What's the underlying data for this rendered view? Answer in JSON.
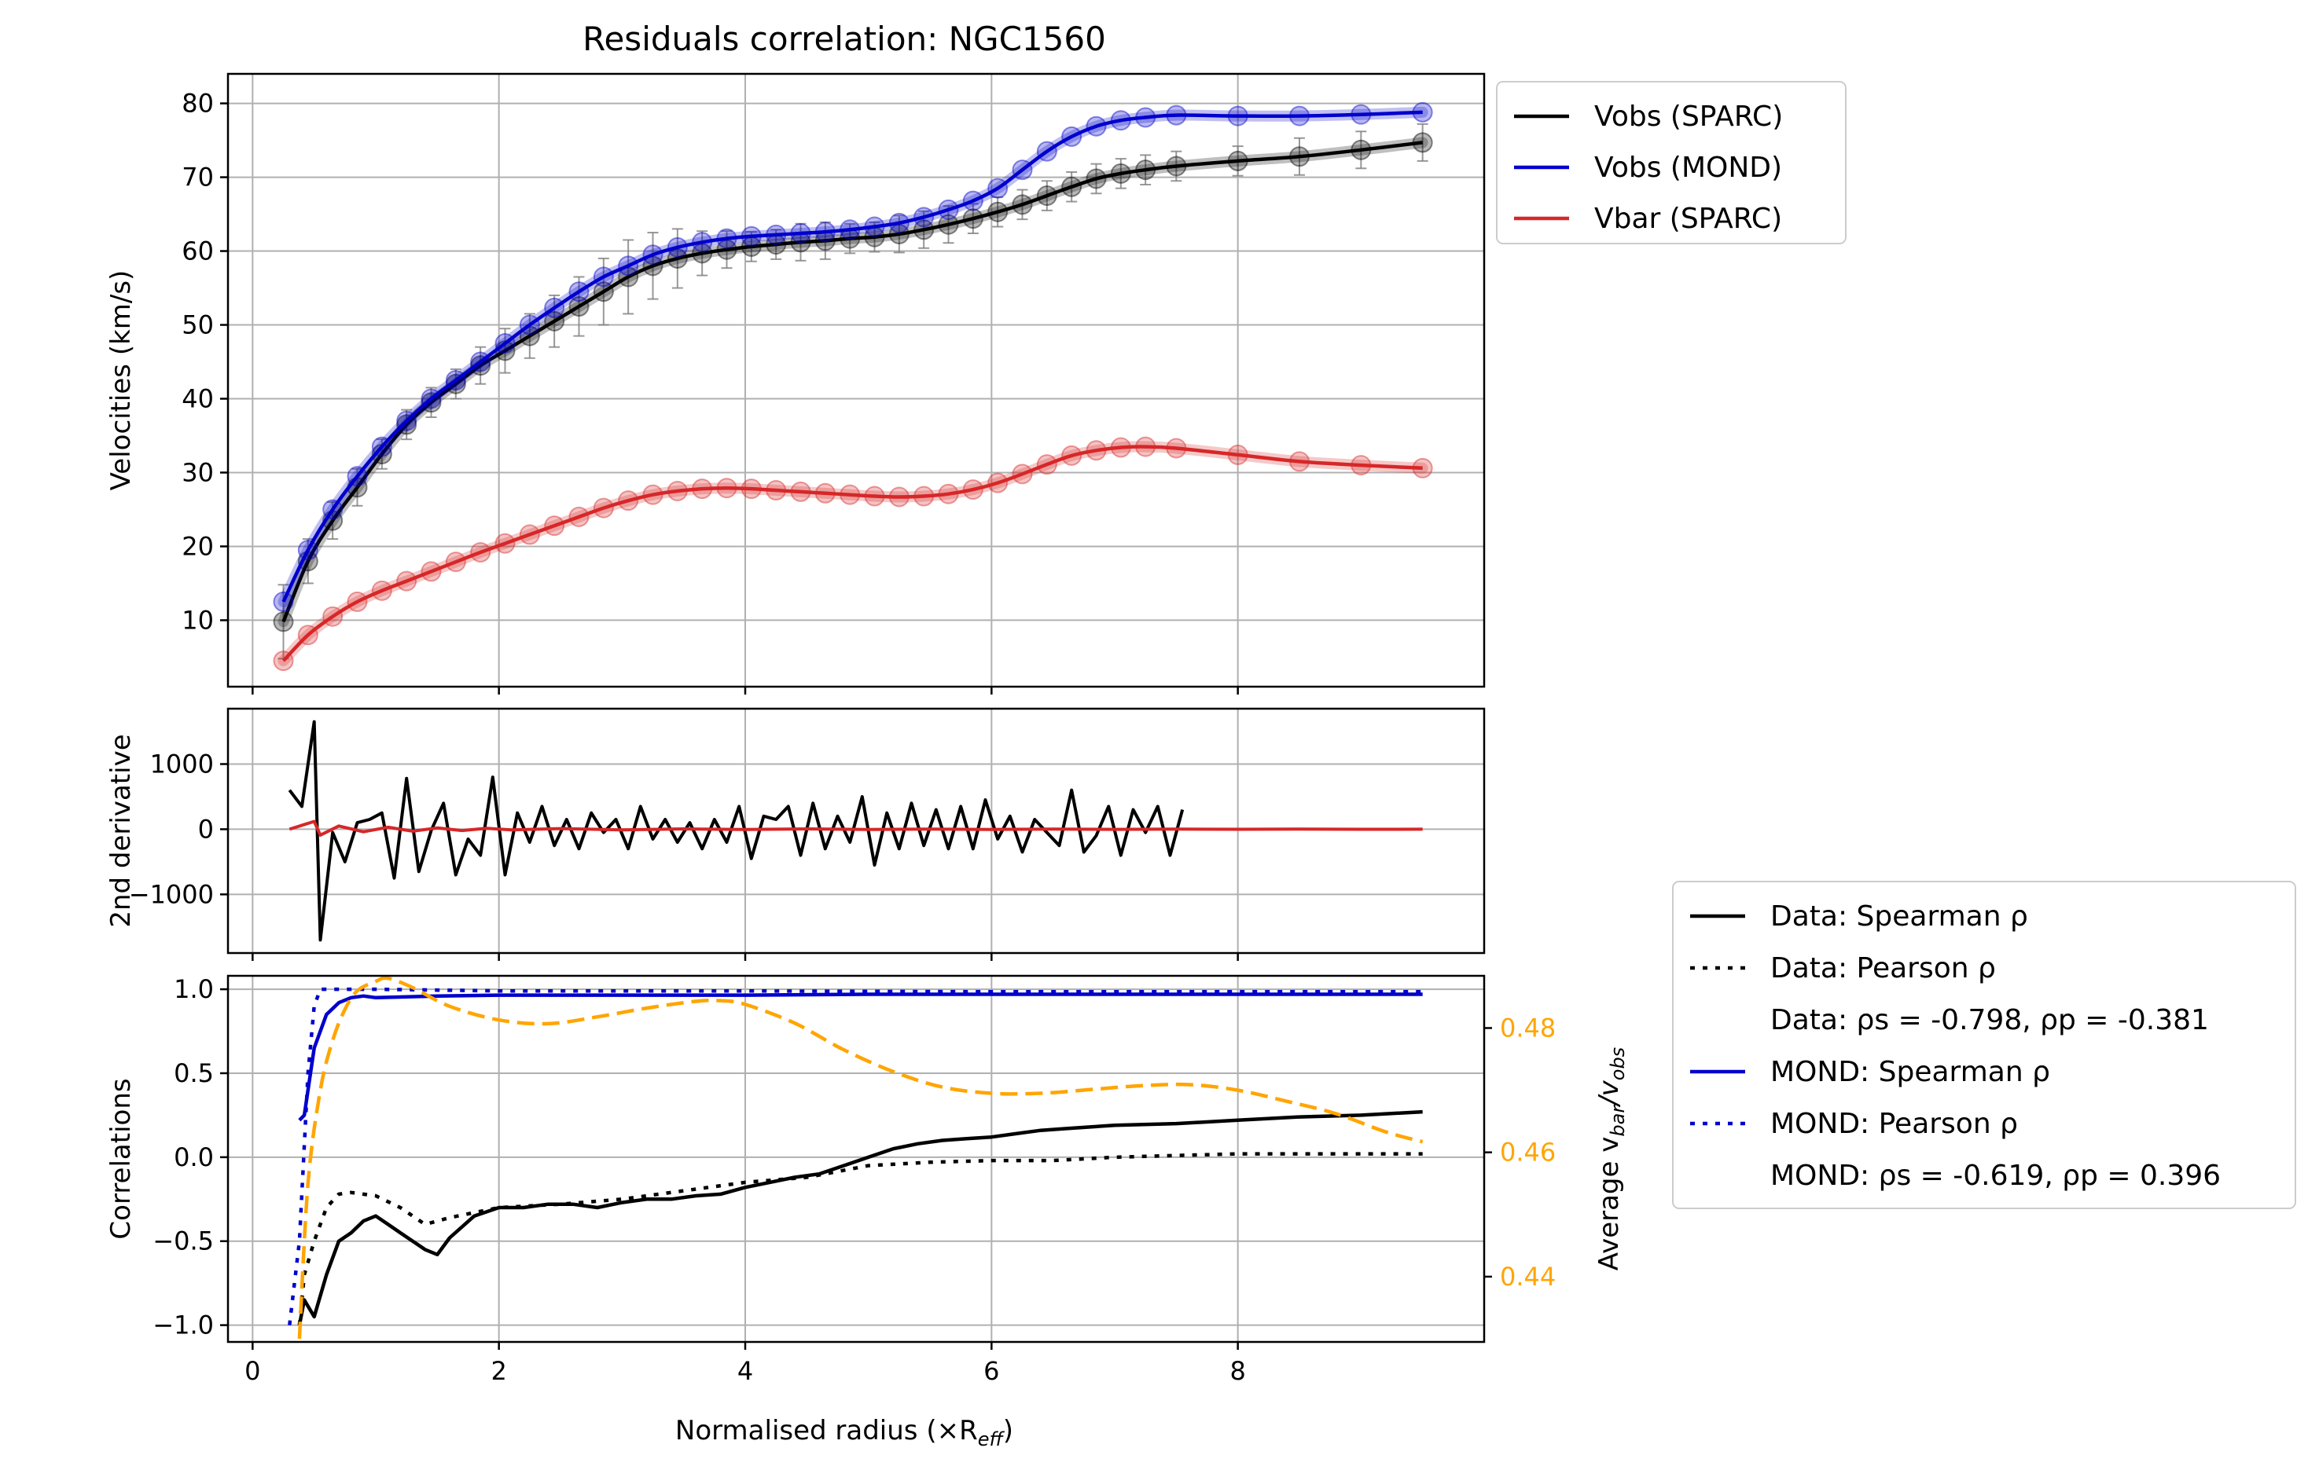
{
  "chart_data": {
    "title": "Residuals correlation: NGC1560",
    "xlabel": "Normalised radius (×R",
    "xlabel_sub": "eff",
    "xlabel_end": ")",
    "xlim": [
      -0.2,
      10.0
    ],
    "xticks": [
      0,
      2,
      4,
      6,
      8
    ],
    "colors": {
      "data": "#000000",
      "mond": "#0000cc",
      "vbar": "#d62728",
      "avg": "#ffa500"
    },
    "panels": [
      {
        "id": "velocities",
        "type": "line+scatter",
        "ylabel": "Velocities (km/s)",
        "ylim": [
          1,
          84
        ],
        "yticks": [
          10,
          20,
          30,
          40,
          50,
          60,
          70,
          80
        ],
        "legend": {
          "placement": "outside-top-right",
          "entries": [
            "Vobs (SPARC)",
            "Vobs (MOND)",
            "Vbar (SPARC)"
          ]
        },
        "series": [
          {
            "name": "Vobs (SPARC)",
            "x": [
              0.25,
              0.45,
              0.65,
              0.85,
              1.05,
              1.25,
              1.45,
              1.65,
              1.85,
              2.05,
              2.25,
              2.45,
              2.65,
              2.85,
              3.05,
              3.25,
              3.45,
              3.65,
              3.85,
              4.05,
              4.25,
              4.45,
              4.65,
              4.85,
              5.05,
              5.25,
              5.45,
              5.65,
              5.85,
              6.05,
              6.25,
              6.45,
              6.65,
              6.85,
              7.05,
              7.25,
              7.5,
              8.0,
              8.5,
              9.0,
              9.5
            ],
            "y": [
              9.8,
              18.0,
              23.5,
              28.0,
              32.5,
              36.5,
              39.5,
              42.0,
              44.5,
              46.5,
              48.5,
              50.5,
              52.5,
              54.5,
              56.5,
              58.0,
              59.0,
              59.7,
              60.2,
              60.6,
              60.9,
              61.2,
              61.4,
              61.7,
              61.9,
              62.3,
              62.9,
              63.6,
              64.4,
              65.3,
              66.3,
              67.5,
              68.7,
              69.8,
              70.5,
              71.0,
              71.5,
              72.2,
              72.8,
              73.7,
              74.7
            ]
          },
          {
            "name": "Vobs (MOND)",
            "x": [
              0.25,
              0.45,
              0.65,
              0.85,
              1.05,
              1.25,
              1.45,
              1.65,
              1.85,
              2.05,
              2.25,
              2.45,
              2.65,
              2.85,
              3.05,
              3.25,
              3.45,
              3.65,
              3.85,
              4.05,
              4.25,
              4.45,
              4.65,
              4.85,
              5.05,
              5.25,
              5.45,
              5.65,
              5.85,
              6.05,
              6.25,
              6.45,
              6.65,
              6.85,
              7.05,
              7.25,
              7.5,
              8.0,
              8.5,
              9.0,
              9.5
            ],
            "y": [
              12.5,
              19.5,
              25.0,
              29.5,
              33.5,
              37.0,
              40.0,
              42.5,
              45.0,
              47.5,
              50.0,
              52.3,
              54.5,
              56.5,
              58.0,
              59.5,
              60.5,
              61.2,
              61.7,
              62.0,
              62.2,
              62.4,
              62.6,
              62.9,
              63.3,
              63.8,
              64.6,
              65.6,
              66.8,
              68.5,
              71.0,
              73.5,
              75.5,
              76.9,
              77.7,
              78.1,
              78.4,
              78.3,
              78.3,
              78.5,
              78.8
            ]
          },
          {
            "name": "Vbar (SPARC)",
            "x": [
              0.25,
              0.45,
              0.65,
              0.85,
              1.05,
              1.25,
              1.45,
              1.65,
              1.85,
              2.05,
              2.25,
              2.45,
              2.65,
              2.85,
              3.05,
              3.25,
              3.45,
              3.65,
              3.85,
              4.05,
              4.25,
              4.45,
              4.65,
              4.85,
              5.05,
              5.25,
              5.45,
              5.65,
              5.85,
              6.05,
              6.25,
              6.45,
              6.65,
              6.85,
              7.05,
              7.25,
              7.5,
              8.0,
              8.5,
              9.0,
              9.5
            ],
            "y": [
              4.5,
              8.0,
              10.5,
              12.5,
              14.0,
              15.3,
              16.6,
              17.9,
              19.2,
              20.4,
              21.6,
              22.8,
              24.0,
              25.2,
              26.2,
              27.0,
              27.5,
              27.8,
              27.9,
              27.8,
              27.6,
              27.4,
              27.2,
              27.0,
              26.8,
              26.7,
              26.8,
              27.1,
              27.7,
              28.6,
              29.8,
              31.1,
              32.3,
              33.0,
              33.4,
              33.5,
              33.3,
              32.4,
              31.5,
              31.0,
              30.6
            ]
          }
        ]
      },
      {
        "id": "second-derivative",
        "type": "line",
        "ylabel": "2nd derivative",
        "ylim": [
          -1900,
          1850
        ],
        "yticks": [
          1000,
          0,
          -1000
        ],
        "ytick_labels": [
          "1000",
          "0",
          "−1000"
        ],
        "series": [
          {
            "name": "",
            "x": [
              0.3,
              0.4,
              0.5,
              0.55,
              0.65,
              0.75,
              0.85,
              0.95,
              1.05,
              1.15,
              1.25,
              1.35,
              1.45,
              1.55,
              1.65,
              1.75,
              1.85,
              1.95,
              2.05,
              2.15,
              2.25,
              2.35,
              2.45,
              2.55,
              2.65,
              2.75,
              2.85,
              2.95,
              3.05,
              3.15,
              3.25,
              3.35,
              3.45,
              3.55,
              3.65,
              3.75,
              3.85,
              3.95,
              4.05,
              4.15,
              4.25,
              4.35,
              4.45,
              4.55,
              4.65,
              4.75,
              4.85,
              4.95,
              5.05,
              5.15,
              5.25,
              5.35,
              5.45,
              5.55,
              5.65,
              5.75,
              5.85,
              5.95,
              6.05,
              6.15,
              6.25,
              6.35,
              6.45,
              6.55,
              6.65,
              6.75,
              6.85,
              6.95,
              7.05,
              7.15,
              7.25,
              7.35,
              7.45,
              7.55
            ],
            "y": [
              600,
              350,
              1650,
              -1700,
              -50,
              -500,
              100,
              150,
              250,
              -750,
              780,
              -650,
              -20,
              400,
              -700,
              -150,
              -400,
              800,
              -700,
              250,
              -200,
              350,
              -250,
              150,
              -300,
              250,
              -50,
              150,
              -300,
              350,
              -150,
              150,
              -200,
              100,
              -300,
              150,
              -200,
              350,
              -450,
              200,
              150,
              350,
              -400,
              400,
              -300,
              200,
              -200,
              500,
              -550,
              250,
              -300,
              400,
              -250,
              300,
              -300,
              350,
              -300,
              450,
              -150,
              200,
              -350,
              150,
              -50,
              -250,
              600,
              -350,
              -100,
              350,
              -400,
              300,
              -50,
              350,
              -400,
              300
            ]
          },
          {
            "name": "",
            "x": [
              0.3,
              0.5,
              0.55,
              0.7,
              0.9,
              1.1,
              1.3,
              1.5,
              1.7,
              1.9,
              2.1,
              2.5,
              3.0,
              3.5,
              4.0,
              4.5,
              5.0,
              5.5,
              6.0,
              6.5,
              7.0,
              7.5,
              8.0,
              8.5,
              9.0,
              9.5
            ],
            "y": [
              0,
              120,
              -90,
              50,
              -40,
              30,
              -30,
              20,
              -20,
              15,
              -10,
              10,
              -10,
              5,
              -5,
              5,
              -5,
              3,
              -3,
              2,
              -2,
              2,
              -1,
              1,
              -1,
              0
            ]
          }
        ]
      },
      {
        "id": "correlations",
        "type": "line",
        "ylabel": "Correlations",
        "ylim": [
          -1.1,
          1.08
        ],
        "yticks": [
          1.0,
          0.5,
          0.0,
          -0.5,
          -1.0
        ],
        "ytick_labels": [
          "1.0",
          "0.5",
          "0.0",
          "−0.5",
          "−1.0"
        ],
        "y2label": "Average v",
        "y2label_sub1": "bar",
        "y2label_mid": "/v",
        "y2label_sub2": "obs",
        "y2lim": [
          0.4295,
          0.4884
        ],
        "y2ticks": [
          0.48,
          0.46,
          0.44
        ],
        "legend": {
          "placement": "outside-lower-right",
          "entries": [
            "Data: Spearman ρ",
            "Data: Pearson ρ",
            "Data: ρs = -0.798, ρp = -0.381",
            "MOND: Spearman ρ",
            "MOND: Pearson ρ",
            "MOND: ρs = -0.619, ρp = 0.396"
          ]
        },
        "series": [
          {
            "name": "Data: Spearman ρ",
            "x": [
              0.38,
              0.42,
              0.5,
              0.6,
              0.7,
              0.8,
              0.9,
              1.0,
              1.1,
              1.2,
              1.3,
              1.4,
              1.5,
              1.6,
              1.8,
              2.0,
              2.2,
              2.4,
              2.6,
              2.8,
              3.0,
              3.2,
              3.4,
              3.6,
              3.8,
              4.0,
              4.2,
              4.4,
              4.6,
              4.8,
              5.0,
              5.2,
              5.4,
              5.6,
              5.8,
              6.0,
              6.2,
              6.4,
              6.6,
              6.8,
              7.0,
              7.5,
              8.0,
              8.5,
              9.0,
              9.5
            ],
            "y": [
              -1.0,
              -0.85,
              -0.95,
              -0.7,
              -0.5,
              -0.45,
              -0.38,
              -0.35,
              -0.4,
              -0.45,
              -0.5,
              -0.55,
              -0.58,
              -0.48,
              -0.35,
              -0.3,
              -0.3,
              -0.28,
              -0.28,
              -0.3,
              -0.27,
              -0.25,
              -0.25,
              -0.23,
              -0.22,
              -0.18,
              -0.15,
              -0.12,
              -0.1,
              -0.05,
              0.0,
              0.05,
              0.08,
              0.1,
              0.11,
              0.12,
              0.14,
              0.16,
              0.17,
              0.18,
              0.19,
              0.2,
              0.22,
              0.24,
              0.25,
              0.27
            ]
          },
          {
            "name": "Data: Pearson ρ",
            "x": [
              0.38,
              0.42,
              0.5,
              0.6,
              0.7,
              0.8,
              1.0,
              1.2,
              1.4,
              1.6,
              1.8,
              2.0,
              2.5,
              3.0,
              3.5,
              4.0,
              4.5,
              5.0,
              5.5,
              6.0,
              6.5,
              7.0,
              7.5,
              8.0,
              8.5,
              9.0,
              9.5
            ],
            "y": [
              -1.0,
              -0.7,
              -0.5,
              -0.3,
              -0.22,
              -0.21,
              -0.23,
              -0.3,
              -0.4,
              -0.36,
              -0.33,
              -0.3,
              -0.28,
              -0.25,
              -0.2,
              -0.15,
              -0.12,
              -0.05,
              -0.03,
              -0.02,
              -0.02,
              0.0,
              0.01,
              0.02,
              0.02,
              0.02,
              0.02
            ]
          },
          {
            "name": "MOND: Spearman ρ",
            "x": [
              0.38,
              0.42,
              0.5,
              0.6,
              0.7,
              0.8,
              0.9,
              1.0,
              1.5,
              2.0,
              3.0,
              4.0,
              5.0,
              6.0,
              7.0,
              8.0,
              9.0,
              9.5
            ],
            "y": [
              0.22,
              0.25,
              0.65,
              0.85,
              0.92,
              0.95,
              0.96,
              0.95,
              0.96,
              0.965,
              0.965,
              0.965,
              0.97,
              0.97,
              0.97,
              0.97,
              0.97,
              0.97
            ]
          },
          {
            "name": "MOND: Pearson ρ",
            "x": [
              0.3,
              0.38,
              0.45,
              0.5,
              0.55,
              0.6,
              1.0,
              2.0,
              4.0,
              6.0,
              8.0,
              9.5
            ],
            "y": [
              -1.0,
              -0.5,
              0.5,
              0.9,
              1.0,
              1.0,
              1.0,
              0.99,
              0.99,
              0.985,
              0.985,
              0.985
            ]
          },
          {
            "name": "",
            "axis": "y2",
            "x": [
              0.38,
              0.45,
              0.55,
              0.65,
              0.75,
              0.85,
              1.0,
              1.1,
              1.3,
              1.6,
              2.0,
              2.4,
              2.8,
              3.2,
              3.6,
              3.8,
              4.0,
              4.4,
              4.8,
              5.2,
              5.6,
              6.0,
              6.4,
              6.8,
              7.2,
              7.6,
              8.0,
              8.4,
              8.8,
              9.2,
              9.5
            ],
            "y": [
              0.43,
              0.455,
              0.47,
              0.478,
              0.483,
              0.486,
              0.4875,
              0.488,
              0.4865,
              0.4835,
              0.4813,
              0.4807,
              0.4818,
              0.4832,
              0.4843,
              0.4844,
              0.4838,
              0.4808,
              0.4765,
              0.473,
              0.4705,
              0.4695,
              0.4695,
              0.4701,
              0.4707,
              0.4709,
              0.47,
              0.4682,
              0.4662,
              0.4633,
              0.4617
            ]
          }
        ]
      }
    ]
  }
}
